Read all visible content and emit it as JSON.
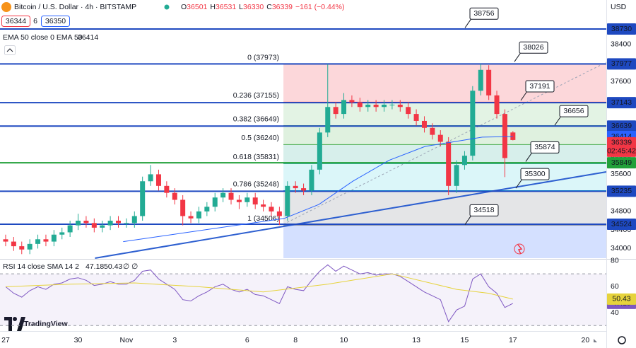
{
  "header": {
    "symbol": "Bitcoin / U.S. Dollar · 4h · BITSTAMP",
    "ohlc_letters": [
      "O",
      "H",
      "L",
      "C"
    ],
    "ohlc": [
      36501,
      36531,
      36330,
      36339
    ],
    "change": "−161 (−0.44%)",
    "bid": 36344,
    "spread": 6,
    "ask": 36350,
    "currency": "USD",
    "countdown": "02:45:42"
  },
  "logo": "TradingView",
  "chart_data": [
    {
      "type": "candlestick",
      "xlim": [
        -0.7,
        74.6
      ],
      "ylim": [
        33793,
        39355
      ],
      "xticks": [
        {
          "value": 0,
          "label": "27"
        },
        {
          "value": 9,
          "label": "30"
        },
        {
          "value": 15,
          "label": "Nov"
        },
        {
          "value": 21,
          "label": "3"
        },
        {
          "value": 30,
          "label": "6"
        },
        {
          "value": 36,
          "label": "8"
        },
        {
          "value": 42,
          "label": "10"
        },
        {
          "value": 51,
          "label": "13"
        },
        {
          "value": 57,
          "label": "15"
        },
        {
          "value": 63,
          "label": "17"
        },
        {
          "value": 72,
          "label": "20"
        }
      ],
      "yticks": [
        34000,
        34400,
        34800,
        35600,
        36000,
        37600,
        38400
      ],
      "up_color": "#22ab94",
      "down_color": "#f23645",
      "open": [
        34200,
        34150,
        34050,
        33980,
        34100,
        34200,
        34150,
        34300,
        34350,
        34500,
        34600,
        34550,
        34450,
        34500,
        34600,
        34550,
        34550,
        34700,
        35450,
        35600,
        35350,
        35200,
        35050,
        34700,
        34650,
        34800,
        34900,
        35100,
        35200,
        35050,
        35000,
        35100,
        34950,
        34900,
        34800,
        34700,
        35350,
        35300,
        35250,
        35700,
        36500,
        37050,
        36900,
        37200,
        37150,
        37050,
        37100,
        37050,
        37100,
        37100,
        37050,
        36900,
        36750,
        36600,
        36450,
        36300,
        35350,
        35800,
        36000,
        37400,
        37850,
        37300,
        36900,
        36501
      ],
      "high": [
        34300,
        34250,
        34150,
        34200,
        34300,
        34300,
        34400,
        34450,
        34600,
        34750,
        34700,
        34650,
        34600,
        34700,
        34700,
        34650,
        34800,
        35550,
        35800,
        35700,
        35450,
        35300,
        35150,
        34800,
        34900,
        35000,
        35200,
        35300,
        35300,
        35150,
        35200,
        35200,
        35050,
        35000,
        34900,
        35450,
        35450,
        35400,
        35800,
        36600,
        37973,
        37150,
        37350,
        37300,
        37250,
        37200,
        37200,
        37200,
        37200,
        37200,
        37150,
        37000,
        36850,
        36700,
        36550,
        36400,
        35900,
        36100,
        37500,
        37977,
        37950,
        37400,
        37000,
        36531
      ],
      "low": [
        34050,
        33950,
        33880,
        33880,
        34000,
        34050,
        34050,
        34200,
        34250,
        34400,
        34450,
        34350,
        34350,
        34400,
        34450,
        34450,
        34450,
        34600,
        35350,
        35250,
        35100,
        34950,
        34500,
        34550,
        34550,
        34700,
        34800,
        35000,
        34950,
        34850,
        34900,
        34850,
        34800,
        34700,
        34506,
        34600,
        35200,
        35150,
        35150,
        35600,
        36400,
        36800,
        36800,
        37050,
        36950,
        36950,
        36950,
        36950,
        37000,
        36950,
        36800,
        36650,
        36500,
        36350,
        36200,
        35150,
        35200,
        35700,
        35900,
        37300,
        37200,
        36800,
        35540,
        36330
      ],
      "close": [
        34150,
        34050,
        33980,
        34100,
        34200,
        34150,
        34300,
        34350,
        34500,
        34600,
        34550,
        34450,
        34500,
        34600,
        34550,
        34550,
        34700,
        35450,
        35600,
        35350,
        35200,
        35050,
        34700,
        34650,
        34800,
        34900,
        35100,
        35200,
        35050,
        35000,
        35100,
        34950,
        34900,
        34800,
        34700,
        35350,
        35300,
        35250,
        35700,
        36500,
        37050,
        36900,
        37200,
        37150,
        37050,
        37100,
        37050,
        37100,
        37100,
        37050,
        36900,
        36750,
        36600,
        36450,
        36300,
        35350,
        35800,
        36000,
        37400,
        37850,
        37300,
        36900,
        35950,
        36339
      ],
      "ema": {
        "name": "EMA 50 close 0 EMA 50",
        "color": "#2962ff",
        "x": [
          14.6,
          26.6,
          34.6,
          38.9,
          43.1,
          47.6,
          52.1,
          56.3,
          59.2,
          63
        ],
        "values": [
          34150,
          34450,
          34650,
          34950,
          35450,
          35900,
          36200,
          36320,
          36400,
          36414
        ]
      },
      "fib": {
        "x": 34.5,
        "levels": [
          {
            "value": 37973,
            "label": "0 (37973)",
            "color": "#787b86",
            "fill": "rgba(242,54,69,0.2)"
          },
          {
            "value": 37155,
            "label": "0.236 (37155)",
            "color": "#f23645",
            "fill": "rgba(129,199,132,0.22)"
          },
          {
            "value": 36649,
            "label": "0.382 (36649)",
            "color": "#4caf50",
            "fill": "rgba(76,175,80,0.18)"
          },
          {
            "value": 36240,
            "label": "0.5 (36240)",
            "color": "#4caf50",
            "fill": "rgba(8,153,129,0.16)"
          },
          {
            "value": 35831,
            "label": "0.618 (35831)",
            "color": "#089981",
            "fill": "rgba(0,188,212,0.14)"
          },
          {
            "value": 35248,
            "label": "0.786 (35248)",
            "color": "#00bcd4",
            "fill": "rgba(120,123,134,0.2)"
          },
          {
            "value": 34506,
            "label": "1 (34506)",
            "color": "#787b86",
            "fill": "rgba(41,98,255,0.2)"
          }
        ]
      },
      "levels": [
        {
          "value": 38730,
          "color": "#1e49c0"
        },
        {
          "value": 37977,
          "color": "#1e49c0"
        },
        {
          "value": 37143,
          "color": "#1e49c0"
        },
        {
          "value": 36639,
          "color": "#1e49c0"
        },
        {
          "value": 35849,
          "color": "#22a03a"
        },
        {
          "value": 35235,
          "color": "#1e49c0"
        },
        {
          "value": 34524,
          "color": "#1e49c0"
        }
      ],
      "trendlines": [
        {
          "x": [
            11.1,
            74.6
          ],
          "y": [
            33793,
            35652
          ],
          "color": "#2d5fd0",
          "dash": false
        },
        {
          "x": [
            34.5,
            74.6
          ],
          "y": [
            34524,
            38014
          ],
          "color": "#9aa3b5",
          "dash": true
        }
      ],
      "callouts": [
        38756,
        38026,
        37191,
        36656,
        35874,
        35300,
        34518
      ]
    },
    {
      "type": "line",
      "title": "RSI 14 close SMA 14 2",
      "nulls": "∅ ∅",
      "ylim": [
        27.4,
        80.5
      ],
      "yticks": [
        40,
        60,
        80
      ],
      "bands": [
        30,
        70
      ],
      "series": [
        {
          "name": "RSI",
          "color": "#7e57c2",
          "values": [
            60,
            55,
            52,
            57,
            60,
            58,
            62,
            63,
            66,
            67,
            65,
            61,
            62,
            64,
            62,
            62,
            65,
            72,
            73,
            66,
            62,
            58,
            50,
            49,
            53,
            56,
            60,
            62,
            58,
            56,
            58,
            54,
            53,
            50,
            47,
            60,
            58,
            57,
            65,
            72,
            77,
            72,
            76,
            73,
            70,
            71,
            69,
            70,
            70,
            68,
            64,
            60,
            56,
            53,
            50,
            33,
            42,
            45,
            66,
            70,
            60,
            55,
            44,
            47.18
          ]
        },
        {
          "name": "SMA",
          "color": "#e6d33c",
          "x": [
            0,
            8,
            16,
            24,
            32,
            40,
            48,
            56,
            60,
            63
          ],
          "values": [
            60,
            62,
            63,
            60,
            56,
            62,
            70,
            58,
            55,
            50.43
          ]
        }
      ]
    }
  ]
}
